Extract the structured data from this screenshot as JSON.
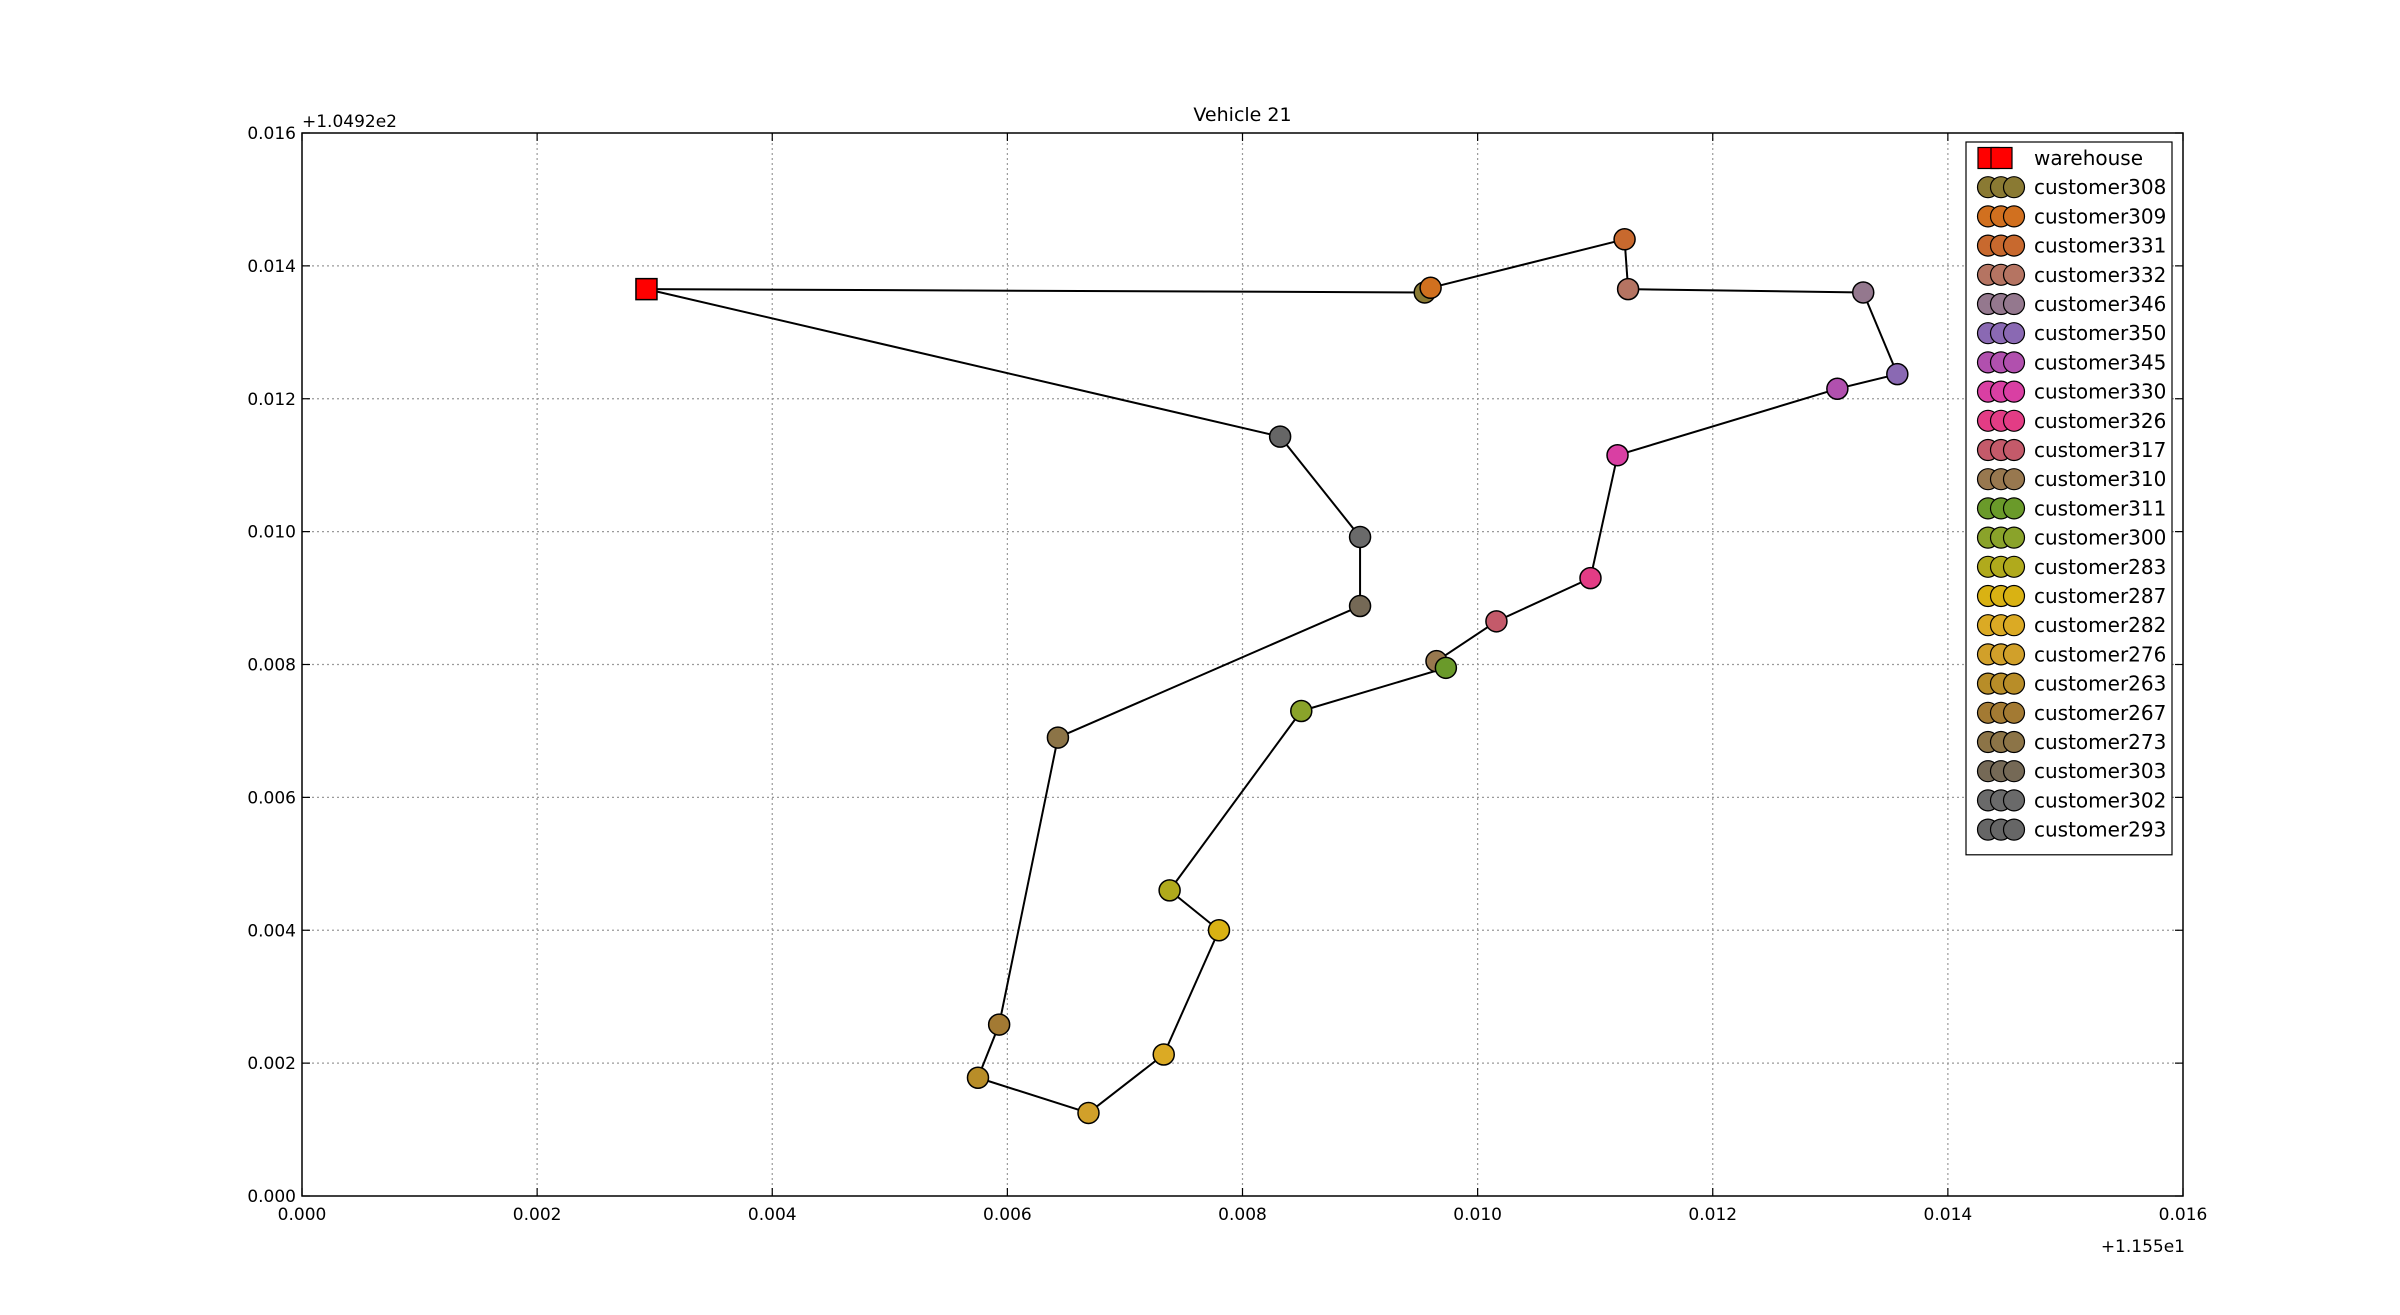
{
  "chart_data": {
    "type": "scatter",
    "title": "Vehicle 21",
    "xlabel": "",
    "ylabel": "",
    "xlim": [
      0.0,
      0.016
    ],
    "ylim": [
      0.0,
      0.016
    ],
    "x_offset_label": "+1.155e1",
    "y_offset_label": "+1.0492e2",
    "x_ticks": [
      "0.000",
      "0.002",
      "0.004",
      "0.006",
      "0.008",
      "0.010",
      "0.012",
      "0.014",
      "0.016"
    ],
    "y_ticks": [
      "0.000",
      "0.002",
      "0.004",
      "0.006",
      "0.008",
      "0.010",
      "0.012",
      "0.014",
      "0.016"
    ],
    "grid": true,
    "legend_position": "top-right",
    "route_color": "#000000",
    "warehouse": {
      "name": "warehouse",
      "x": 0.00293,
      "y": 0.01365,
      "color": "#ff0000",
      "marker": "square"
    },
    "series": [
      {
        "name": "customer308",
        "x": 0.00955,
        "y": 0.0136,
        "color": "#8a7a33"
      },
      {
        "name": "customer309",
        "x": 0.0096,
        "y": 0.01367,
        "color": "#d1701f"
      },
      {
        "name": "customer331",
        "x": 0.01125,
        "y": 0.0144,
        "color": "#c8692e"
      },
      {
        "name": "customer332",
        "x": 0.01128,
        "y": 0.01365,
        "color": "#b57462"
      },
      {
        "name": "customer346",
        "x": 0.01328,
        "y": 0.0136,
        "color": "#94788e"
      },
      {
        "name": "customer350",
        "x": 0.01357,
        "y": 0.01237,
        "color": "#8a69b3"
      },
      {
        "name": "customer345",
        "x": 0.01306,
        "y": 0.01215,
        "color": "#b150ae"
      },
      {
        "name": "customer330",
        "x": 0.01119,
        "y": 0.01115,
        "color": "#d93fa3"
      },
      {
        "name": "customer326",
        "x": 0.01096,
        "y": 0.0093,
        "color": "#e33c85"
      },
      {
        "name": "customer317",
        "x": 0.01016,
        "y": 0.00865,
        "color": "#c45a6a"
      },
      {
        "name": "customer310",
        "x": 0.00965,
        "y": 0.00805,
        "color": "#98784f"
      },
      {
        "name": "customer311",
        "x": 0.00973,
        "y": 0.00795,
        "color": "#6a9a2a"
      },
      {
        "name": "customer300",
        "x": 0.0085,
        "y": 0.0073,
        "color": "#8aa32a"
      },
      {
        "name": "customer283",
        "x": 0.00738,
        "y": 0.0046,
        "color": "#b0aa1c"
      },
      {
        "name": "customer287",
        "x": 0.0078,
        "y": 0.004,
        "color": "#d9b213"
      },
      {
        "name": "customer282",
        "x": 0.00733,
        "y": 0.00213,
        "color": "#dbaa24"
      },
      {
        "name": "customer276",
        "x": 0.00669,
        "y": 0.00125,
        "color": "#d1a02a"
      },
      {
        "name": "customer263",
        "x": 0.00575,
        "y": 0.00178,
        "color": "#b88d28"
      },
      {
        "name": "customer267",
        "x": 0.00593,
        "y": 0.00258,
        "color": "#a37a33"
      },
      {
        "name": "customer273",
        "x": 0.00643,
        "y": 0.0069,
        "color": "#8c7447"
      },
      {
        "name": "customer303",
        "x": 0.009,
        "y": 0.00888,
        "color": "#756956"
      },
      {
        "name": "customer302",
        "x": 0.009,
        "y": 0.00992,
        "color": "#6a6a6a"
      },
      {
        "name": "customer293",
        "x": 0.00832,
        "y": 0.01143,
        "color": "#666666"
      }
    ],
    "route_order": [
      "warehouse",
      "customer308",
      "customer309",
      "customer331",
      "customer332",
      "customer346",
      "customer350",
      "customer345",
      "customer330",
      "customer326",
      "customer317",
      "customer310",
      "customer311",
      "customer300",
      "customer283",
      "customer287",
      "customer282",
      "customer276",
      "customer263",
      "customer267",
      "customer273",
      "customer303",
      "customer302",
      "customer293",
      "warehouse"
    ]
  }
}
